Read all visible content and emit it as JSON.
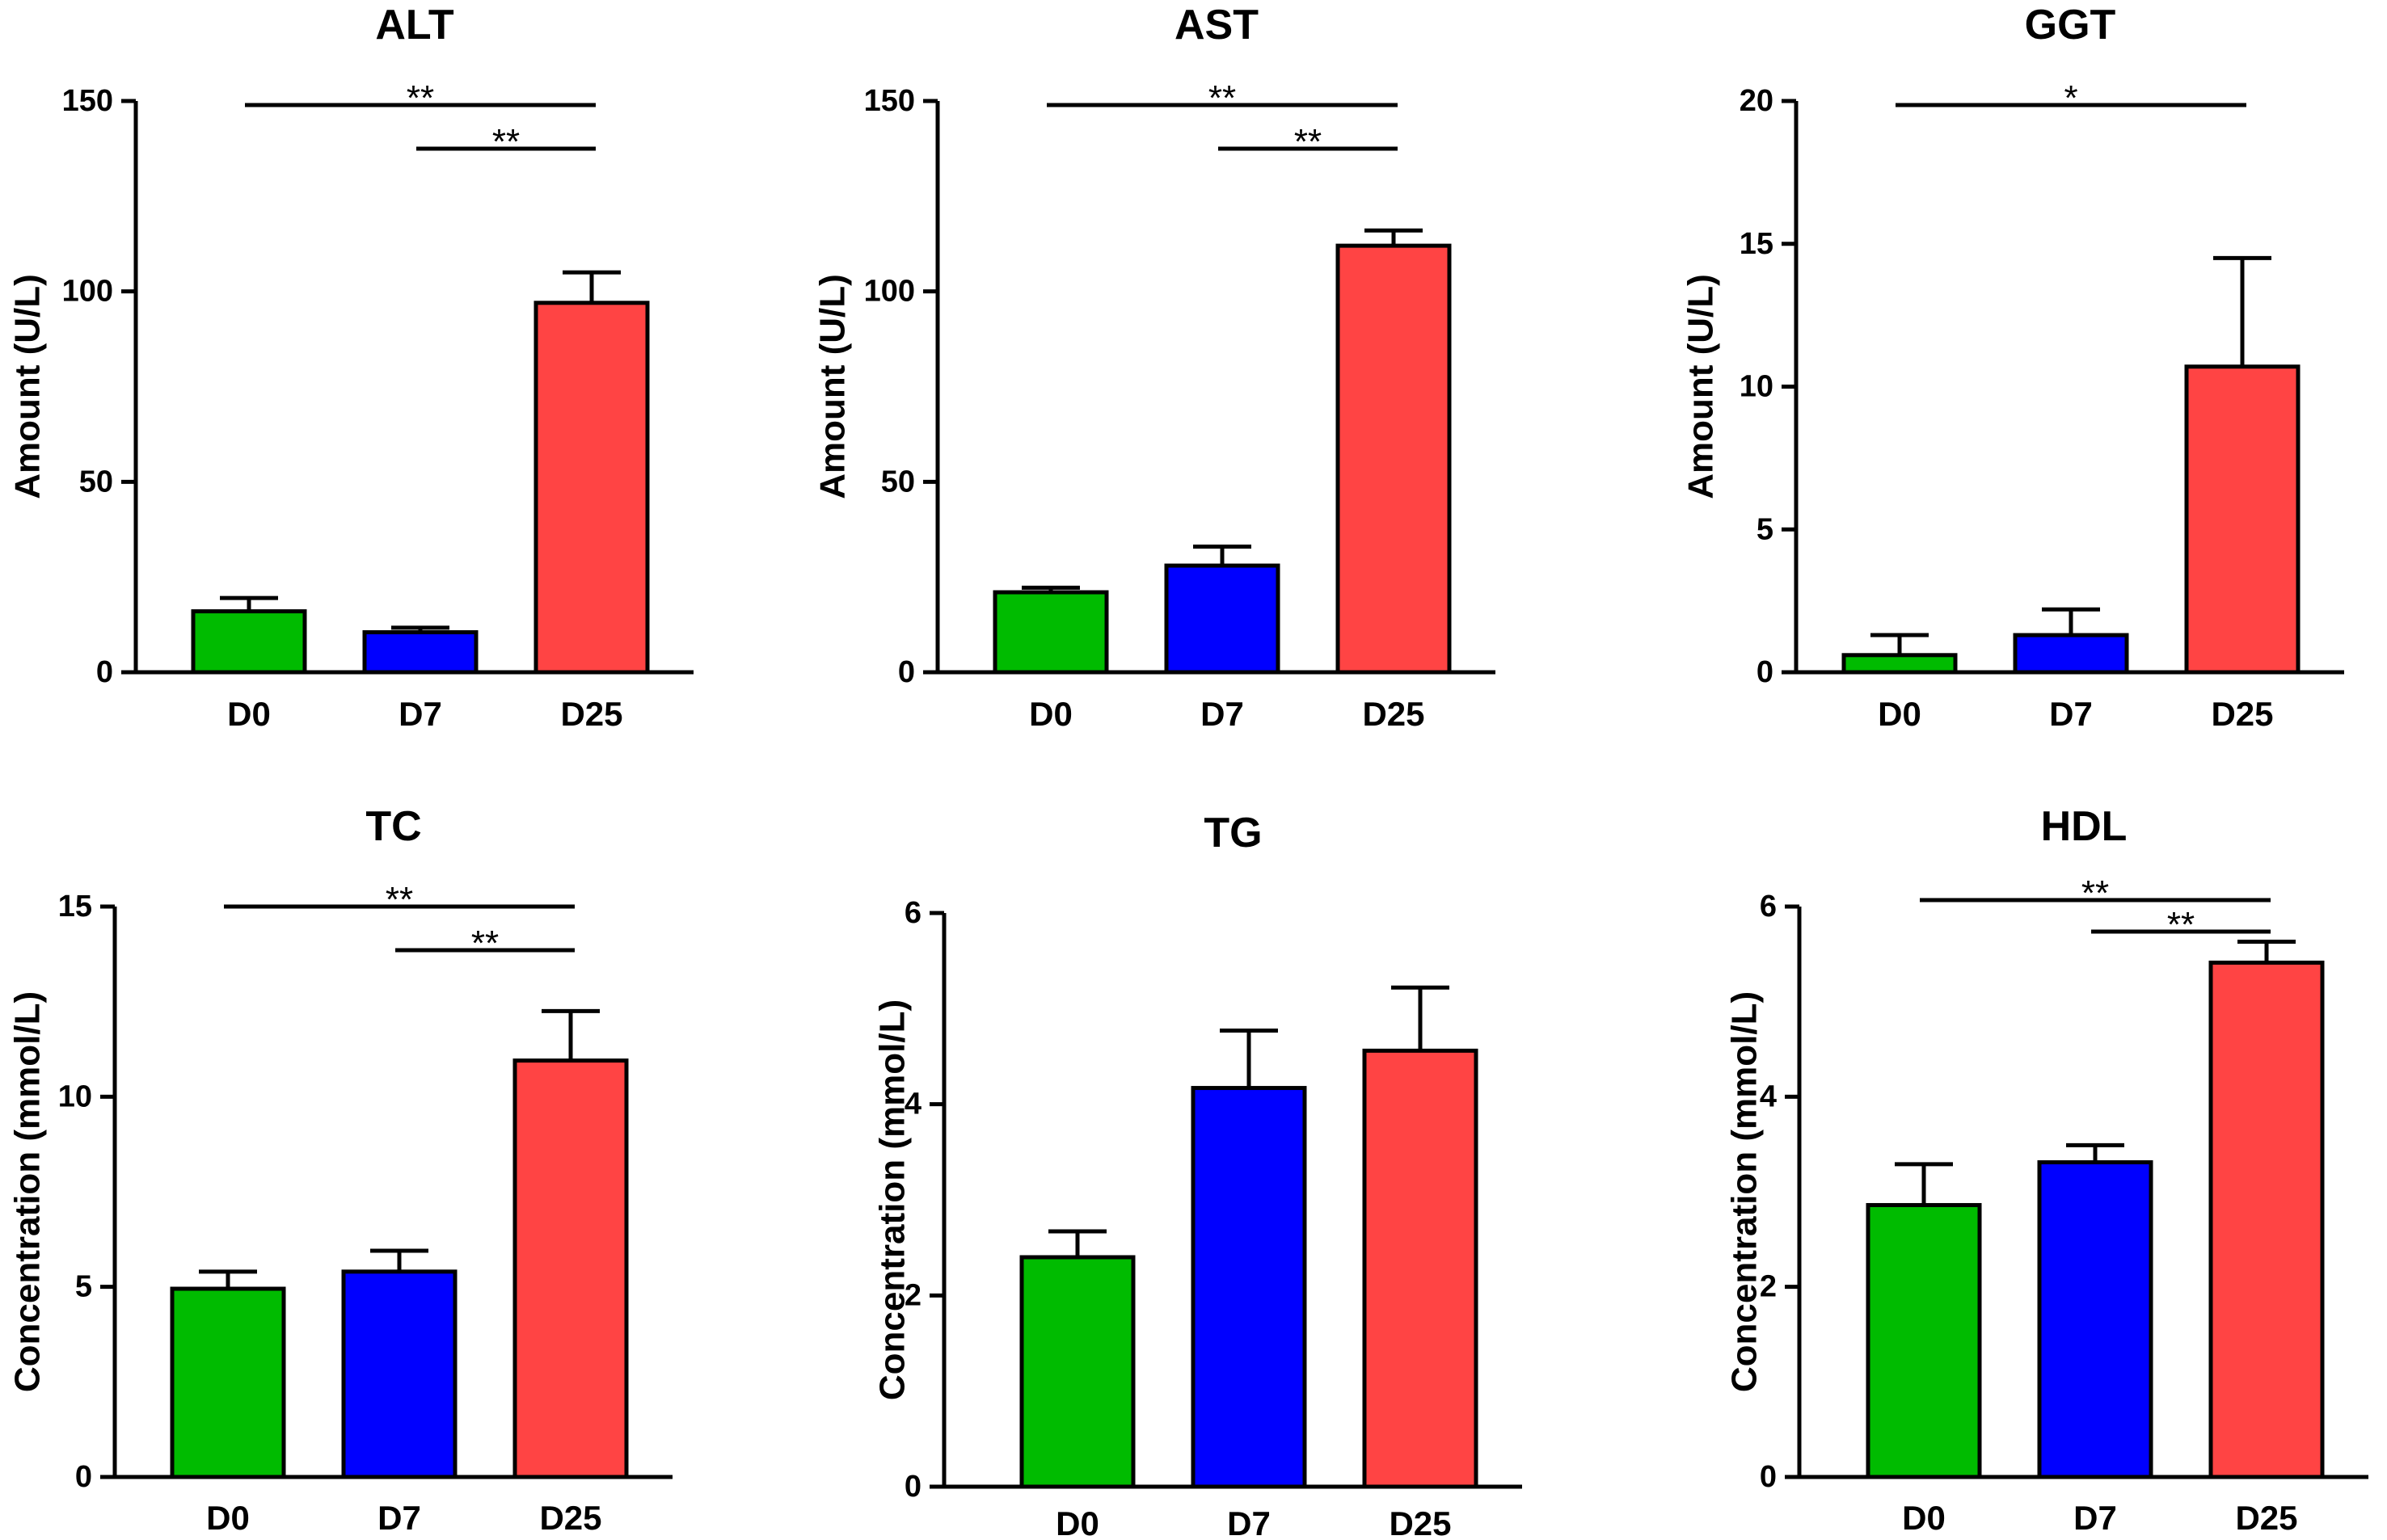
{
  "colors": {
    "D0": "#00bb00",
    "D7": "#0000ff",
    "D25": "#ff4444"
  },
  "chart_data": [
    {
      "type": "bar",
      "title": "ALT",
      "ylabel": "Amount (U/L)",
      "xlabel": "",
      "categories": [
        "D0",
        "D7",
        "D25"
      ],
      "values": [
        16,
        10.5,
        97
      ],
      "errors": [
        3.5,
        1.2,
        8
      ],
      "ylim": [
        0,
        150
      ],
      "yticks": [
        0,
        50,
        100,
        150
      ],
      "ytick_labels": [
        "0",
        "50",
        "100",
        "150"
      ],
      "significance": [
        {
          "from": "D0",
          "to": "D25",
          "label": "**"
        },
        {
          "from": "D7",
          "to": "D25",
          "label": "**"
        }
      ]
    },
    {
      "type": "bar",
      "title": "AST",
      "ylabel": "Amount (U/L)",
      "xlabel": "",
      "categories": [
        "D0",
        "D7",
        "D25"
      ],
      "values": [
        21,
        28,
        112
      ],
      "errors": [
        1.2,
        5,
        4
      ],
      "ylim": [
        0,
        150
      ],
      "yticks": [
        0,
        50,
        100,
        150
      ],
      "ytick_labels": [
        "0",
        "50",
        "100",
        "150"
      ],
      "significance": [
        {
          "from": "D0",
          "to": "D25",
          "label": "**"
        },
        {
          "from": "D7",
          "to": "D25",
          "label": "**"
        }
      ]
    },
    {
      "type": "bar",
      "title": "GGT",
      "ylabel": "Amount (U/L)",
      "xlabel": "",
      "categories": [
        "D0",
        "D7",
        "D25"
      ],
      "values": [
        0.6,
        1.3,
        10.7
      ],
      "errors": [
        0.7,
        0.9,
        3.8
      ],
      "ylim": [
        0,
        20
      ],
      "yticks": [
        0,
        5,
        10,
        15,
        20
      ],
      "ytick_labels": [
        "0",
        "5",
        "10",
        "15",
        "20"
      ],
      "significance": [
        {
          "from": "D0",
          "to": "D25",
          "label": "*"
        }
      ]
    },
    {
      "type": "bar",
      "title": "TC",
      "ylabel": "Concentration (mmol/L)",
      "xlabel": "",
      "categories": [
        "D0",
        "D7",
        "D25"
      ],
      "values": [
        4.95,
        5.4,
        10.95
      ],
      "errors": [
        0.45,
        0.55,
        1.3
      ],
      "ylim": [
        0,
        15
      ],
      "yticks": [
        0,
        5,
        10,
        15
      ],
      "ytick_labels": [
        "0",
        "5",
        "10",
        "15"
      ],
      "significance": [
        {
          "from": "D0",
          "to": "D25",
          "label": "**"
        },
        {
          "from": "D7",
          "to": "D25",
          "label": "**"
        }
      ]
    },
    {
      "type": "bar",
      "title": "TG",
      "ylabel": "Concentration (mmol/L)",
      "xlabel": "",
      "categories": [
        "D0",
        "D7",
        "D25"
      ],
      "values": [
        2.4,
        4.17,
        4.56
      ],
      "errors": [
        0.27,
        0.6,
        0.66
      ],
      "ylim": [
        0,
        6
      ],
      "yticks": [
        0,
        2,
        4,
        6
      ],
      "ytick_labels": [
        "0",
        "2",
        "4",
        "6"
      ],
      "significance": []
    },
    {
      "type": "bar",
      "title": "HDL",
      "ylabel": "Concentration (mmol/L)",
      "xlabel": "",
      "categories": [
        "D0",
        "D7",
        "D25"
      ],
      "values": [
        2.86,
        3.31,
        5.41
      ],
      "errors": [
        0.43,
        0.18,
        0.22
      ],
      "ylim": [
        0,
        6
      ],
      "yticks": [
        0,
        2,
        4,
        6
      ],
      "ytick_labels": [
        "0",
        "2",
        "4",
        "6"
      ],
      "significance": [
        {
          "from": "D0",
          "to": "D25",
          "label": "**"
        },
        {
          "from": "D7",
          "to": "D25",
          "label": "**"
        }
      ]
    }
  ]
}
